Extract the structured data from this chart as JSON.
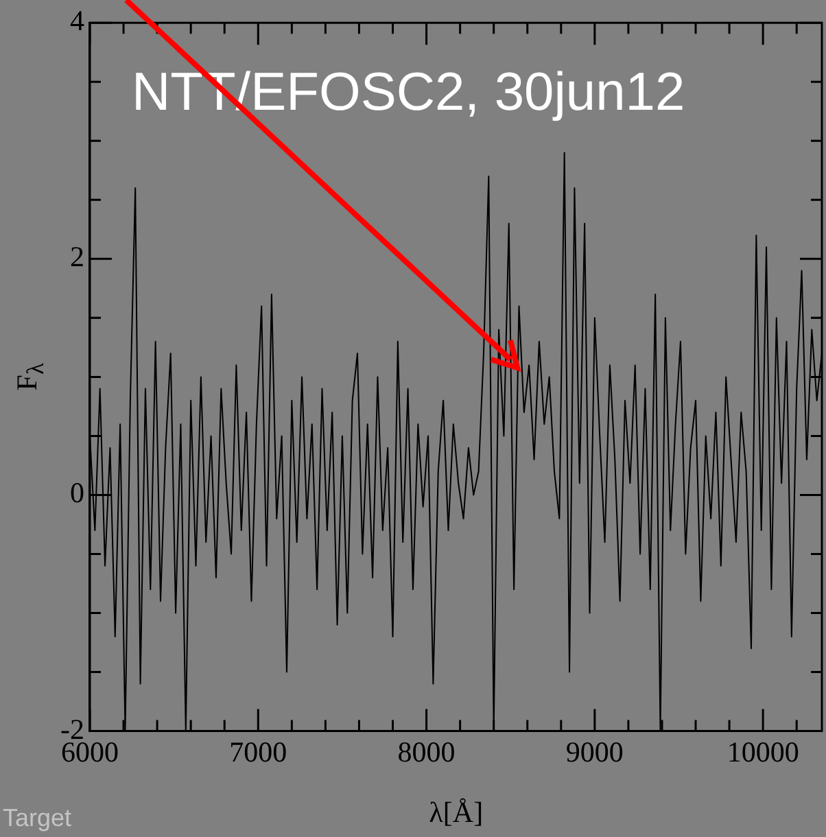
{
  "chart_data": {
    "type": "line",
    "xlabel": "λ[Å]",
    "ylabel": "F$_{λ}$",
    "annotations": [
      "NTT/EFOSC2, 30jun12",
      "Target"
    ],
    "x": [
      6000,
      6030,
      6060,
      6090,
      6120,
      6150,
      6180,
      6210,
      6240,
      6270,
      6300,
      6330,
      6360,
      6390,
      6420,
      6450,
      6480,
      6510,
      6540,
      6570,
      6600,
      6630,
      6660,
      6690,
      6720,
      6750,
      6780,
      6810,
      6840,
      6870,
      6900,
      6930,
      6960,
      6990,
      7020,
      7050,
      7080,
      7110,
      7140,
      7170,
      7200,
      7230,
      7260,
      7290,
      7320,
      7350,
      7380,
      7410,
      7440,
      7470,
      7500,
      7530,
      7560,
      7590,
      7620,
      7650,
      7680,
      7710,
      7740,
      7770,
      7800,
      7830,
      7860,
      7890,
      7920,
      7950,
      7980,
      8010,
      8040,
      8070,
      8100,
      8130,
      8160,
      8190,
      8220,
      8250,
      8280,
      8310,
      8340,
      8370,
      8400,
      8430,
      8460,
      8490,
      8520,
      8550,
      8580,
      8610,
      8640,
      8670,
      8700,
      8730,
      8760,
      8790,
      8820,
      8850,
      8880,
      8910,
      8940,
      8970,
      9000,
      9030,
      9060,
      9090,
      9120,
      9150,
      9180,
      9210,
      9240,
      9270,
      9300,
      9330,
      9360,
      9390,
      9420,
      9450,
      9480,
      9510,
      9540,
      9570,
      9600,
      9630,
      9660,
      9690,
      9720,
      9750,
      9780,
      9810,
      9840,
      9870,
      9900,
      9930,
      9960,
      9990,
      10020,
      10050,
      10080,
      10110,
      10140,
      10170,
      10200,
      10230,
      10260,
      10290,
      10320,
      10350
    ],
    "series": [
      {
        "color": "#000000",
        "values": [
          0.5,
          -0.3,
          0.9,
          -0.6,
          0.4,
          -1.2,
          0.6,
          -2.0,
          0.8,
          2.6,
          -1.6,
          0.9,
          -0.8,
          1.3,
          -0.9,
          0.4,
          1.2,
          -1.0,
          0.6,
          -2.0,
          0.8,
          -0.6,
          1.0,
          -0.4,
          0.5,
          -0.7,
          0.9,
          0.1,
          -0.5,
          1.1,
          -0.3,
          0.7,
          -0.9,
          0.6,
          1.6,
          -0.6,
          1.7,
          -0.2,
          0.5,
          -1.5,
          0.8,
          -0.4,
          1.0,
          -0.2,
          0.6,
          -0.8,
          0.9,
          -0.3,
          0.7,
          -1.1,
          0.5,
          -1.0,
          0.8,
          1.2,
          -0.5,
          0.6,
          -0.7,
          1.0,
          -0.3,
          0.4,
          -1.2,
          1.3,
          -0.4,
          0.9,
          -0.8,
          0.6,
          -0.1,
          0.5,
          -1.6,
          0.2,
          0.8,
          -0.3,
          0.6,
          0.1,
          -0.2,
          0.4,
          0.0,
          0.2,
          1.2,
          2.7,
          -2.0,
          1.4,
          0.5,
          2.3,
          -0.8,
          1.6,
          0.7,
          1.1,
          0.3,
          1.3,
          0.6,
          1.0,
          0.2,
          -0.2,
          2.9,
          -1.5,
          2.6,
          0.1,
          2.3,
          -1.0,
          1.5,
          0.5,
          -0.4,
          1.1,
          0.3,
          -0.9,
          0.8,
          0.1,
          1.1,
          -0.5,
          0.9,
          -0.8,
          1.7,
          -2.0,
          1.5,
          -0.3,
          0.6,
          1.3,
          -0.5,
          0.4,
          0.8,
          -0.9,
          0.5,
          -0.2,
          0.7,
          -0.6,
          1.0,
          0.3,
          -0.4,
          0.7,
          0.2,
          -1.3,
          2.2,
          -0.3,
          2.1,
          -0.8,
          1.5,
          0.1,
          1.3,
          -1.2,
          0.9,
          1.9,
          0.3,
          1.4,
          0.8,
          1.2
        ]
      }
    ],
    "xlim": [
      6000,
      10350
    ],
    "ylim": [
      -2,
      4
    ],
    "xticks": [
      6000,
      {
        "value": 6200,
        "label": null
      },
      {
        "value": 6400,
        "label": null
      },
      {
        "value": 6600,
        "label": null
      },
      {
        "value": 6800,
        "label": null
      },
      7000,
      {
        "value": 7200,
        "label": null
      },
      {
        "value": 7400,
        "label": null
      },
      {
        "value": 7600,
        "label": null
      },
      {
        "value": 7800,
        "label": null
      },
      8000,
      {
        "value": 8200,
        "label": null
      },
      {
        "value": 8400,
        "label": null
      },
      {
        "value": 8600,
        "label": null
      },
      {
        "value": 8800,
        "label": null
      },
      9000,
      {
        "value": 9200,
        "label": null
      },
      {
        "value": 9400,
        "label": null
      },
      {
        "value": 9600,
        "label": null
      },
      {
        "value": 9800,
        "label": null
      },
      10000,
      {
        "value": 10200,
        "label": null
      }
    ],
    "yticks": [
      -2,
      {
        "value": -1.5,
        "label": null
      },
      {
        "value": -1,
        "label": null
      },
      {
        "value": -0.5,
        "label": null
      },
      0,
      {
        "value": 0.5,
        "label": null
      },
      {
        "value": 1,
        "label": null
      },
      {
        "value": 1.5,
        "label": null
      },
      2,
      {
        "value": 2.5,
        "label": null
      },
      {
        "value": 3,
        "label": null
      },
      {
        "value": 3.5,
        "label": null
      },
      4
    ],
    "grid": false,
    "legend": false,
    "marker": "none",
    "line_style": "solid"
  }
}
